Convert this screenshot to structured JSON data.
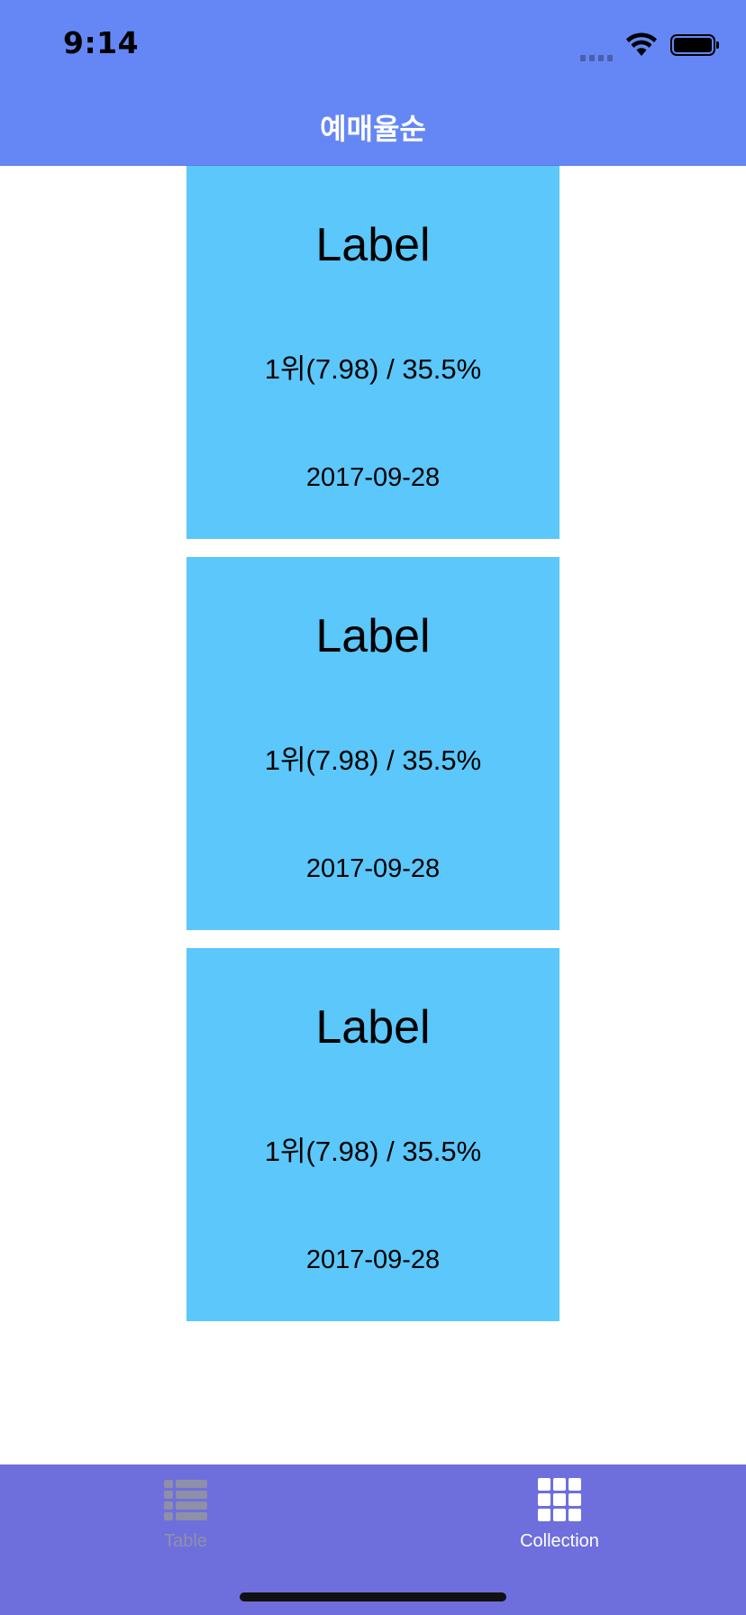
{
  "status_bar": {
    "time": "9:14"
  },
  "nav": {
    "title": "예매율순"
  },
  "cells": [
    {
      "title": "Label",
      "rank_info": "1위(7.98) / 35.5%",
      "date": "2017-09-28"
    },
    {
      "title": "Label",
      "rank_info": "1위(7.98) / 35.5%",
      "date": "2017-09-28"
    },
    {
      "title": "Label",
      "rank_info": "1위(7.98) / 35.5%",
      "date": "2017-09-28"
    }
  ],
  "tabbar": {
    "tabs": [
      {
        "label": "Table",
        "icon": "list-icon",
        "selected": false
      },
      {
        "label": "Collection",
        "icon": "grid-icon",
        "selected": true
      }
    ]
  },
  "colors": {
    "nav_background": "#6587f6",
    "cell_background": "#5bc7fa",
    "tabbar_background": "#6e6fdc"
  }
}
